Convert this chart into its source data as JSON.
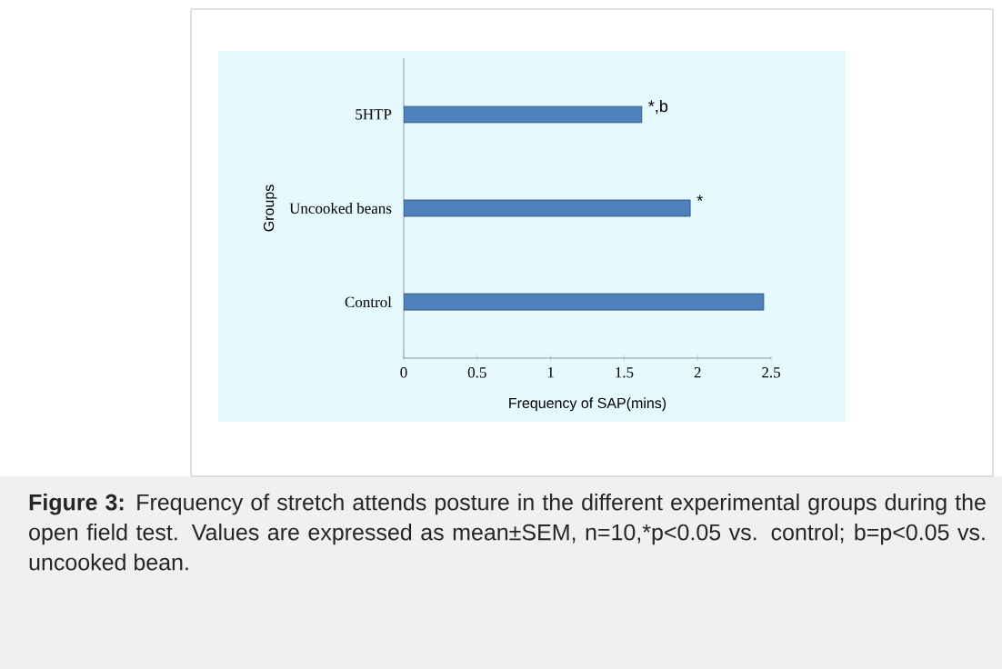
{
  "chart_data": {
    "type": "bar",
    "orientation": "horizontal",
    "categories": [
      "5HTP",
      "Uncooked beans",
      "Control"
    ],
    "values": [
      1.62,
      1.95,
      2.45
    ],
    "color": "#4f81bd",
    "xlim": [
      0,
      2.5
    ],
    "xticks": [
      0,
      0.5,
      1,
      1.5,
      2,
      2.5
    ],
    "xlabel": "Frequency of SAP(mins)",
    "ylabel": "Groups",
    "annotations": [
      {
        "text": "*,b",
        "x": 1.62,
        "y": "5HTP"
      },
      {
        "text": "*",
        "x": 1.95,
        "y": "Uncooked beans"
      },
      "**Figure 3:** Frequency of stretch attends posture in the different experimental groups during the open field test. Values are expressed as mean±SEM, n=10,*p<0.05 vs. control; b=p<0.05 vs. uncooked bean."
    ]
  }
}
